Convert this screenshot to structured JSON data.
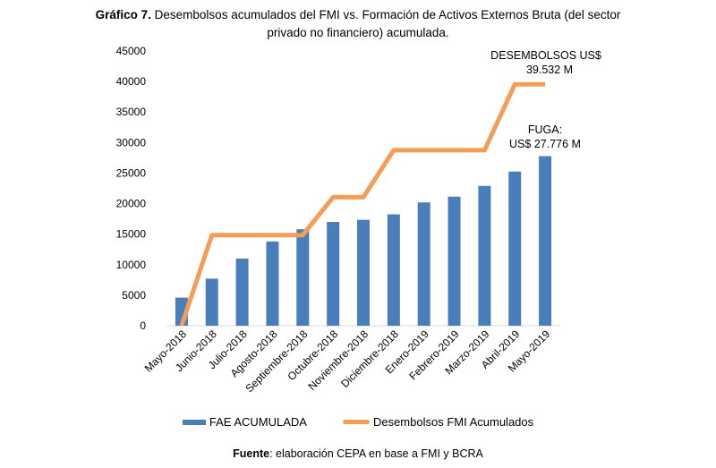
{
  "header": {
    "title_bold": "Gráfico 7.",
    "title_line1": " Desembolsos acumulados del FMI vs. Formación de Activos Externos Bruta (del sector",
    "title_line2": "privado no financiero) acumulada."
  },
  "chart_data": {
    "type": "bar",
    "title": "Gráfico 7. Desembolsos acumulados del FMI vs. Formación de Activos Externos Bruta (del sector privado no financiero) acumulada.",
    "xlabel": "",
    "ylabel": "",
    "ylim": [
      0,
      45000
    ],
    "yticks": [
      0,
      5000,
      10000,
      15000,
      20000,
      25000,
      30000,
      35000,
      40000,
      45000
    ],
    "ytick_labels": [
      "0",
      "5000",
      "10000",
      "15000",
      "20000",
      "25000",
      "30000",
      "35000",
      "40000",
      "45000"
    ],
    "grid": false,
    "categories": [
      "Mayo-2018",
      "Junio-2018",
      "Julio-2018",
      "Agosto-2018",
      "Septiembre-2018",
      "Octubre-2018",
      "Noviembre-2018",
      "Diciembre-2018",
      "Enero-2019",
      "Febrero-2019",
      "Marzo-2019",
      "Abril-2019",
      "Mayo-2019"
    ],
    "series": [
      {
        "name": "FAE ACUMULADA",
        "type": "bar",
        "color": "#4A7EBB",
        "values": [
          4600,
          7700,
          11000,
          13800,
          15800,
          17000,
          17350,
          18250,
          20200,
          21150,
          22900,
          25250,
          27776
        ]
      },
      {
        "name": "Desembolsos FMI Acumulados",
        "type": "line",
        "color": "#F59D56",
        "values": [
          0,
          14850,
          14850,
          14850,
          14850,
          21050,
          21050,
          28750,
          28750,
          28750,
          28750,
          39532,
          39532
        ]
      }
    ],
    "annotations": [
      {
        "line1": "DESEMBOLSOS US$",
        "line2": "39.532 M",
        "target": "Desembolsos FMI Acumulados / Mayo-2019"
      },
      {
        "line1": "FUGA:",
        "line2": "US$ 27.776 M",
        "target": "FAE ACUMULADA / Mayo-2019"
      }
    ],
    "legend_position": "bottom"
  },
  "legend": {
    "items": [
      {
        "label": "FAE ACUMULADA"
      },
      {
        "label": "Desembolsos FMI Acumulados"
      }
    ]
  },
  "footer": {
    "source_bold": "Fuente",
    "source_rest": ": elaboración CEPA en base a FMI y BCRA"
  }
}
